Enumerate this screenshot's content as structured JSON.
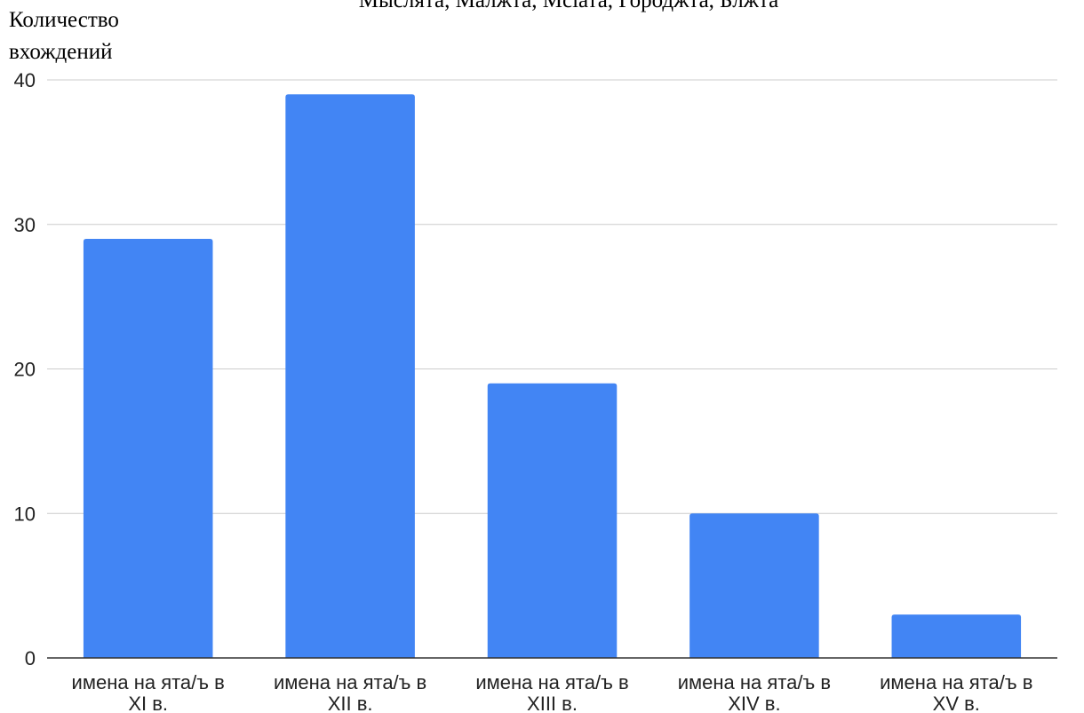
{
  "chart_data": {
    "type": "bar",
    "title": "Мыслята, Малжта, Мсiата, Городжта, Блжта",
    "ylabel": [
      "Количество",
      "вхождений"
    ],
    "xlabel": "",
    "categories": [
      [
        "имена на ята/ъ в",
        "XI в."
      ],
      [
        "имена на ята/ъ в",
        "XII в."
      ],
      [
        "имена на ята/ъ в",
        "XIII в."
      ],
      [
        "имена на ята/ъ в",
        "XIV в."
      ],
      [
        "имена на ята/ъ в",
        "XV в."
      ]
    ],
    "values": [
      29,
      39,
      19,
      10,
      3
    ],
    "ylim": [
      0,
      40
    ],
    "yticks": [
      0,
      10,
      20,
      30,
      40
    ],
    "grid": true,
    "legend": "none",
    "colors": {
      "bar": "#4285f4",
      "grid": "#cccccc",
      "axis": "#333333"
    }
  }
}
